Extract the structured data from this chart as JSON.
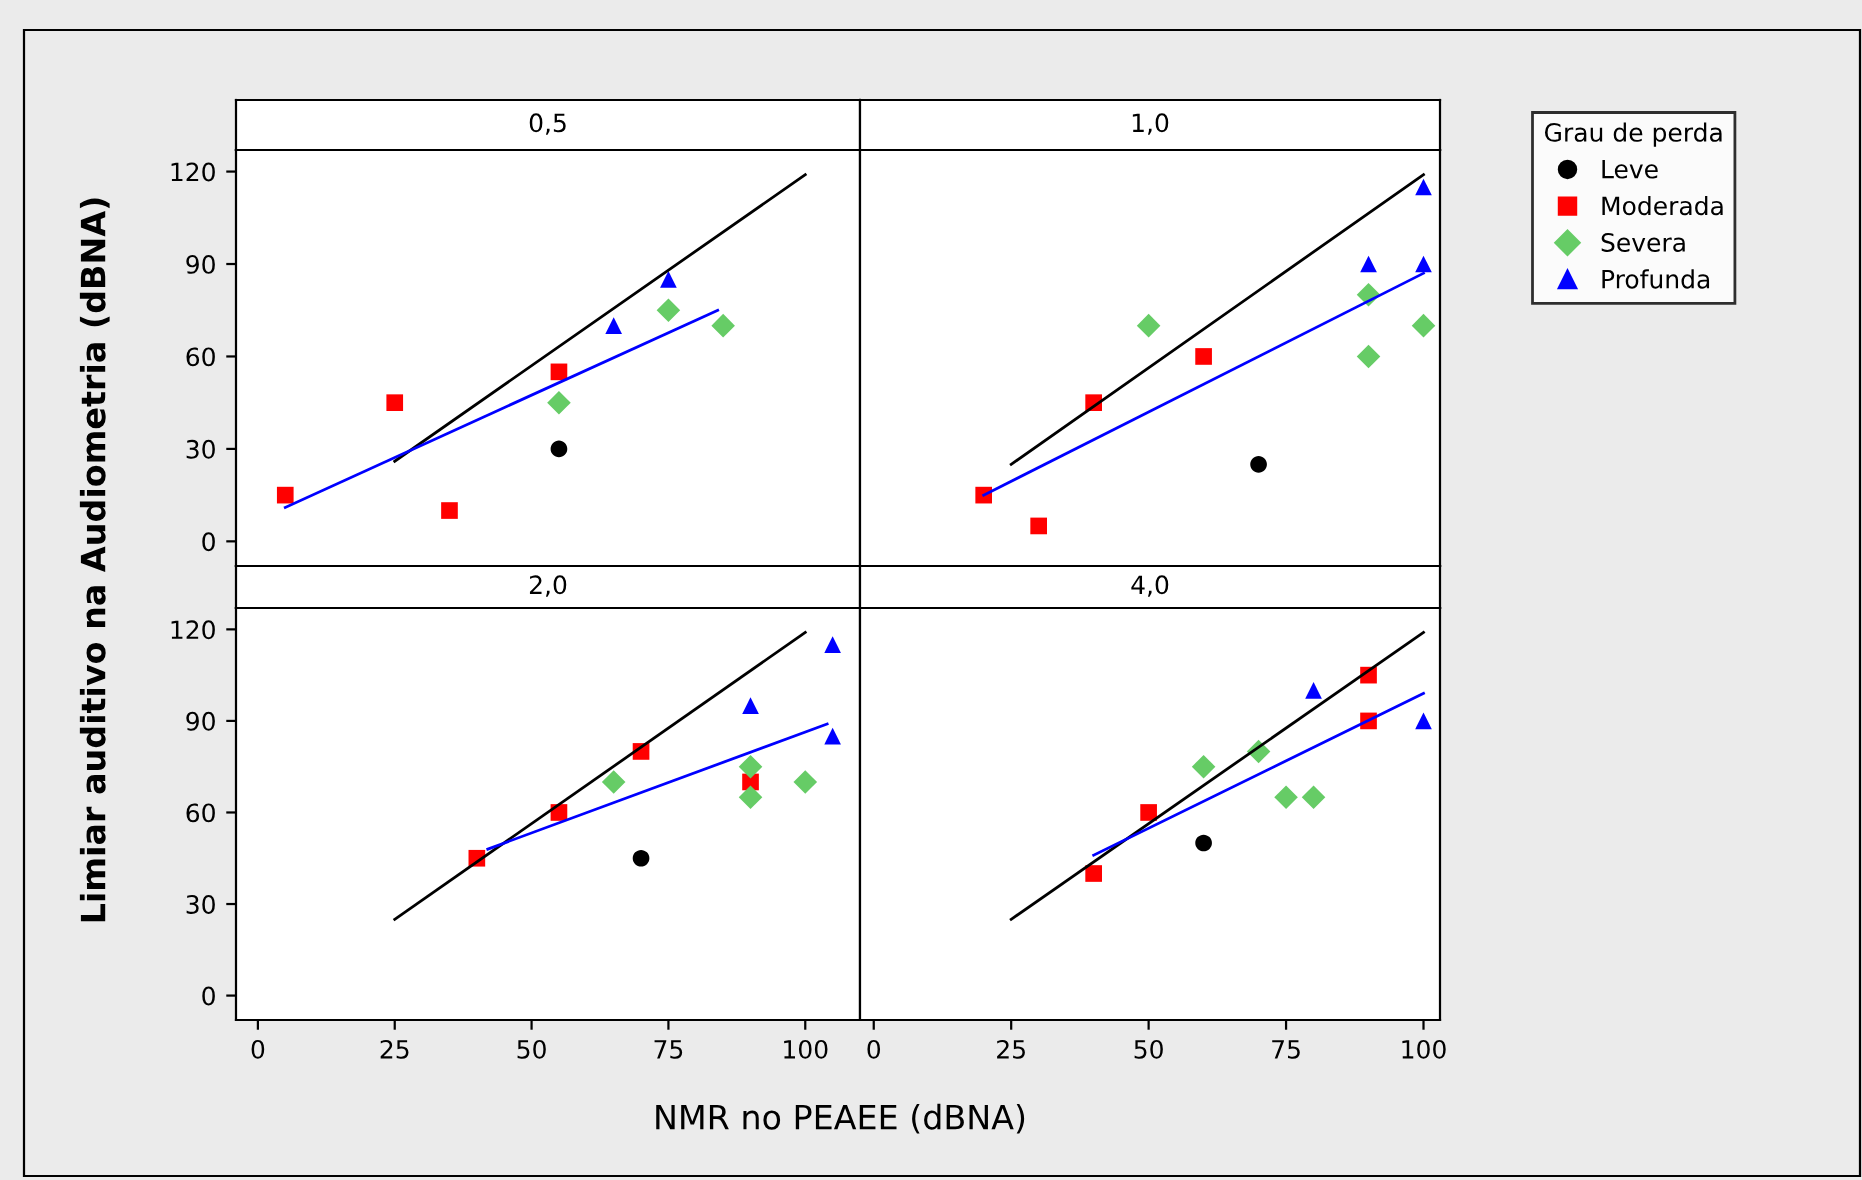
{
  "chart_data": [
    {
      "type": "scatter",
      "title": "0,5",
      "xlabel": "NMR no PEAEE (dBNA)",
      "ylabel": "Limiar auditivo na Audiometria (dBNA)",
      "legend_title": "Grau de perda",
      "legend": "right",
      "tick_labels": "y",
      "xlim": [
        -4,
        110
      ],
      "ylim": [
        -8,
        127
      ],
      "xticks": [
        0,
        25,
        50,
        75,
        100
      ],
      "yticks": [
        0,
        30,
        60,
        90,
        120
      ],
      "grid": false,
      "series": [
        {
          "name": "Leve",
          "color": "#000000",
          "marker": "circle",
          "x": [
            55
          ],
          "values": [
            30
          ]
        },
        {
          "name": "Moderada",
          "color": "#ff0000",
          "marker": "square",
          "x": [
            5,
            25,
            35,
            55
          ],
          "values": [
            15,
            45,
            10,
            55
          ]
        },
        {
          "name": "Severa",
          "color": "#66cc66",
          "marker": "diamond",
          "x": [
            55,
            75,
            85
          ],
          "values": [
            45,
            75,
            70
          ]
        },
        {
          "name": "Profunda",
          "color": "#0000ff",
          "marker": "triangle",
          "x": [
            65,
            75
          ],
          "values": [
            70,
            85
          ]
        },
        {
          "type": "line",
          "color": "#000000",
          "marker": "none",
          "x": [
            25,
            100
          ],
          "values": [
            26,
            119
          ]
        },
        {
          "type": "line",
          "color": "#0000ff",
          "marker": "none",
          "x": [
            5,
            84
          ],
          "values": [
            11,
            75
          ]
        }
      ]
    },
    {
      "type": "scatter",
      "title": "1,0",
      "tick_labels": false,
      "xlim": [
        -2.5,
        103
      ],
      "ylim": [
        -8,
        127
      ],
      "xticks": [
        0,
        25,
        50,
        75,
        100
      ],
      "yticks": [
        0,
        30,
        60,
        90,
        120
      ],
      "grid": false,
      "series": [
        {
          "name": "Leve",
          "color": "#000000",
          "marker": "circle",
          "x": [
            70
          ],
          "values": [
            25
          ]
        },
        {
          "name": "Moderada",
          "color": "#ff0000",
          "marker": "square",
          "x": [
            20,
            30,
            40,
            60
          ],
          "values": [
            15,
            5,
            45,
            60
          ]
        },
        {
          "name": "Severa",
          "color": "#66cc66",
          "marker": "diamond",
          "x": [
            50,
            90,
            90,
            100
          ],
          "values": [
            70,
            80,
            60,
            70
          ]
        },
        {
          "name": "Profunda",
          "color": "#0000ff",
          "marker": "triangle",
          "x": [
            90,
            100,
            100
          ],
          "values": [
            90,
            115,
            90
          ]
        },
        {
          "type": "line",
          "color": "#000000",
          "marker": "none",
          "x": [
            25,
            100
          ],
          "values": [
            25,
            119
          ]
        },
        {
          "type": "line",
          "color": "#0000ff",
          "marker": "none",
          "x": [
            20,
            100
          ],
          "values": [
            15,
            87
          ]
        }
      ]
    },
    {
      "type": "scatter",
      "title": "2,0",
      "xlim": [
        -4,
        110
      ],
      "ylim": [
        -8,
        127
      ],
      "xticks": [
        0,
        25,
        50,
        75,
        100
      ],
      "yticks": [
        0,
        30,
        60,
        90,
        120
      ],
      "grid": false,
      "series": [
        {
          "name": "Leve",
          "color": "#000000",
          "marker": "circle",
          "x": [
            70
          ],
          "values": [
            45
          ]
        },
        {
          "name": "Moderada",
          "color": "#ff0000",
          "marker": "square",
          "x": [
            40,
            55,
            70,
            90
          ],
          "values": [
            45,
            60,
            80,
            70
          ]
        },
        {
          "name": "Severa",
          "color": "#66cc66",
          "marker": "diamond",
          "x": [
            65,
            90,
            90,
            100
          ],
          "values": [
            70,
            75,
            65,
            70
          ]
        },
        {
          "name": "Profunda",
          "color": "#0000ff",
          "marker": "triangle",
          "x": [
            90,
            105,
            105
          ],
          "values": [
            95,
            115,
            85
          ]
        },
        {
          "type": "line",
          "color": "#000000",
          "marker": "none",
          "x": [
            25,
            100
          ],
          "values": [
            25,
            119
          ]
        },
        {
          "type": "line",
          "color": "#0000ff",
          "marker": "none",
          "x": [
            42,
            104
          ],
          "values": [
            48,
            89
          ]
        }
      ]
    },
    {
      "type": "scatter",
      "title": "4,0",
      "tick_labels": "x",
      "xlim": [
        -2.5,
        103
      ],
      "ylim": [
        -8,
        127
      ],
      "xticks": [
        0,
        25,
        50,
        75,
        100
      ],
      "yticks": [
        0,
        30,
        60,
        90,
        120
      ],
      "grid": false,
      "series": [
        {
          "name": "Leve",
          "color": "#000000",
          "marker": "circle",
          "x": [
            60
          ],
          "values": [
            50
          ]
        },
        {
          "name": "Moderada",
          "color": "#ff0000",
          "marker": "square",
          "x": [
            40,
            50,
            90,
            90
          ],
          "values": [
            40,
            60,
            105,
            90
          ]
        },
        {
          "name": "Severa",
          "color": "#66cc66",
          "marker": "diamond",
          "x": [
            60,
            70,
            75,
            80
          ],
          "values": [
            75,
            80,
            65,
            65
          ]
        },
        {
          "name": "Profunda",
          "color": "#0000ff",
          "marker": "triangle",
          "x": [
            80,
            100
          ],
          "values": [
            100,
            90
          ]
        },
        {
          "type": "line",
          "color": "#000000",
          "marker": "none",
          "x": [
            25,
            100
          ],
          "values": [
            25,
            119
          ]
        },
        {
          "type": "line",
          "color": "#0000ff",
          "marker": "none",
          "x": [
            40,
            100
          ],
          "values": [
            46,
            99
          ]
        }
      ]
    }
  ]
}
